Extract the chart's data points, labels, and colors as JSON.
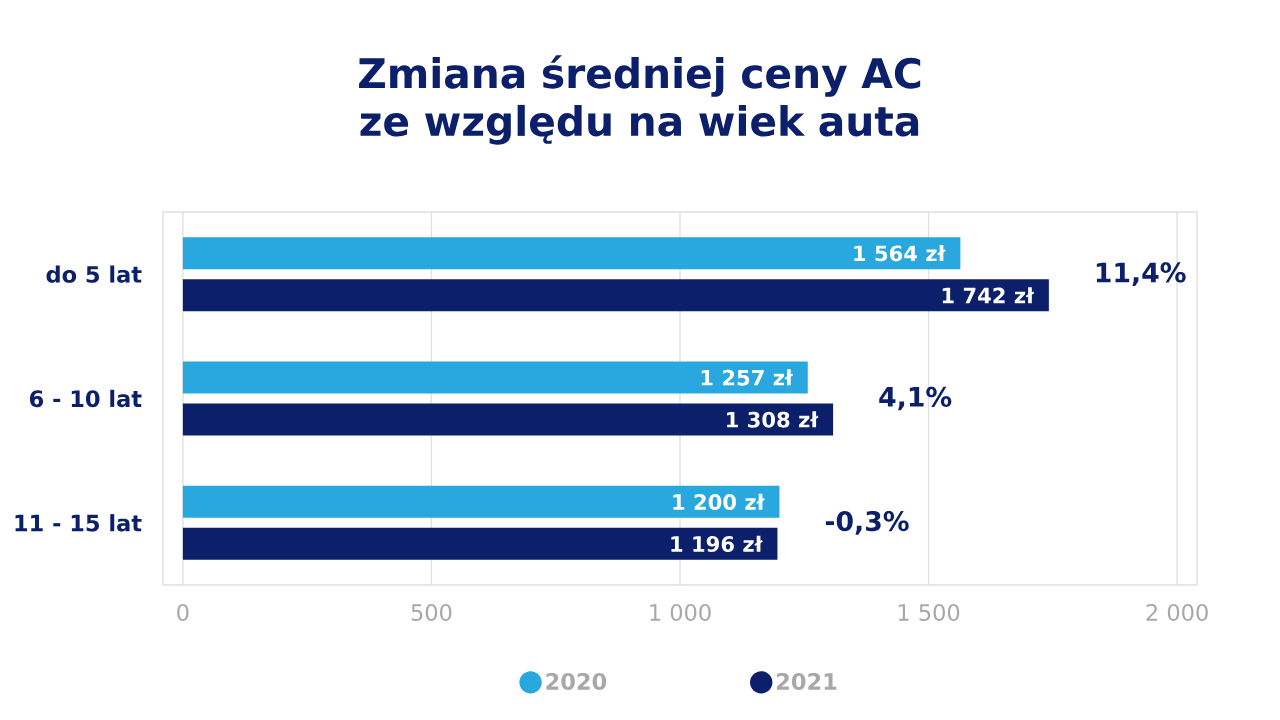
{
  "chart_data": {
    "type": "bar",
    "orientation": "horizontal",
    "title": "Zmiana średniej ceny AC ze względu na wiek auta",
    "categories": [
      "do 5 lat",
      "6 - 10 lat",
      "11 - 15 lat"
    ],
    "series": [
      {
        "name": "2020",
        "color": "#29a7df",
        "values": [
          1564,
          1257,
          1200
        ],
        "value_labels": [
          "1 564 zł",
          "1 257 zł",
          "1 200 zł"
        ]
      },
      {
        "name": "2021",
        "color": "#0b1f6b",
        "values": [
          1742,
          1308,
          1196
        ],
        "value_labels": [
          "1 742 zł",
          "1 308 zł",
          "1 196 zł"
        ]
      }
    ],
    "xlim": [
      -40,
      2040
    ],
    "xticks": [
      0,
      500,
      {
        "value": 1000,
        "label": "1 000"
      },
      {
        "value": 1500,
        "label": "1 500"
      },
      {
        "value": 2000,
        "label": "2 000"
      }
    ],
    "grid": "x",
    "legend": "bottom",
    "annotations": [
      "11,4%",
      "4,1%",
      "-0,3%"
    ]
  }
}
